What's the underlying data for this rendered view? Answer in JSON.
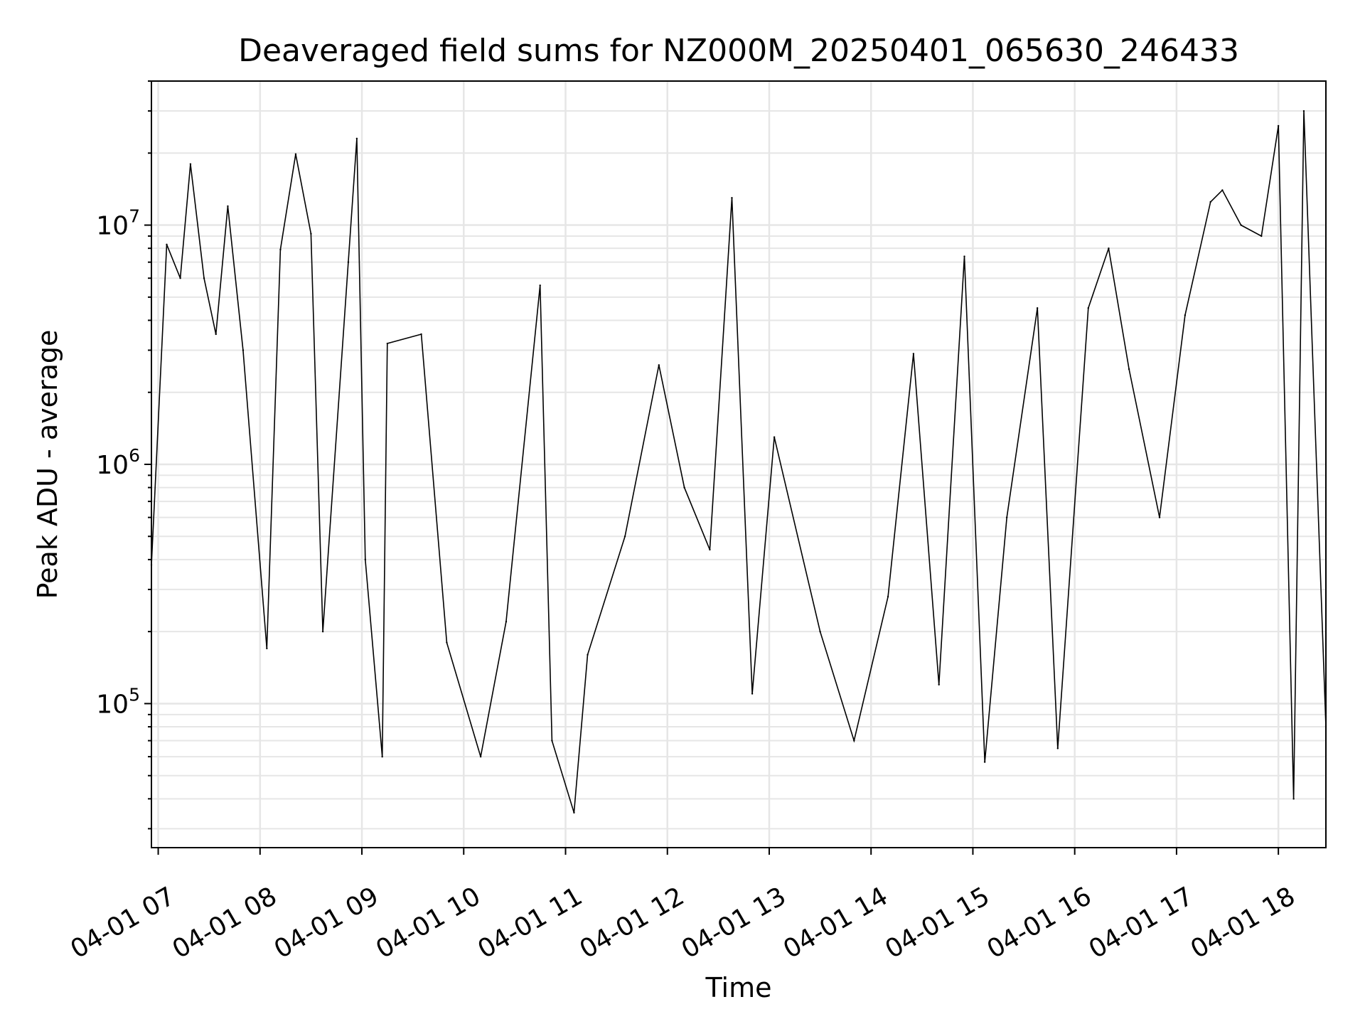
{
  "chart_data": {
    "type": "line",
    "title": "Deaveraged field sums for NZ000M_20250401_065630_246433",
    "xlabel": "Time",
    "ylabel": "Peak ADU - average",
    "yscale": "log",
    "ylim": [
      25000,
      40000000
    ],
    "xlim": [
      "2025-04-01 06:56",
      "2025-04-01 18:28"
    ],
    "grid": true,
    "x_ticks": [
      {
        "value": "2025-04-01 07:00",
        "label": "04-01 07"
      },
      {
        "value": "2025-04-01 08:00",
        "label": "04-01 08"
      },
      {
        "value": "2025-04-01 09:00",
        "label": "04-01 09"
      },
      {
        "value": "2025-04-01 10:00",
        "label": "04-01 10"
      },
      {
        "value": "2025-04-01 11:00",
        "label": "04-01 11"
      },
      {
        "value": "2025-04-01 12:00",
        "label": "04-01 12"
      },
      {
        "value": "2025-04-01 13:00",
        "label": "04-01 13"
      },
      {
        "value": "2025-04-01 14:00",
        "label": "04-01 14"
      },
      {
        "value": "2025-04-01 15:00",
        "label": "04-01 15"
      },
      {
        "value": "2025-04-01 16:00",
        "label": "04-01 16"
      },
      {
        "value": "2025-04-01 17:00",
        "label": "04-01 17"
      },
      {
        "value": "2025-04-01 18:00",
        "label": "04-01 18"
      }
    ],
    "y_ticks": [
      {
        "value": 100000,
        "base": "10",
        "exp": "5"
      },
      {
        "value": 1000000,
        "base": "10",
        "exp": "6"
      },
      {
        "value": 10000000,
        "base": "10",
        "exp": "7"
      }
    ],
    "series": [
      {
        "color": "#000000",
        "x": [
          "2025-04-01 06:56",
          "2025-04-01 07:05",
          "2025-04-01 07:13",
          "2025-04-01 07:19",
          "2025-04-01 07:27",
          "2025-04-01 07:34",
          "2025-04-01 07:41",
          "2025-04-01 07:50",
          "2025-04-01 08:04",
          "2025-04-01 08:12",
          "2025-04-01 08:21",
          "2025-04-01 08:30",
          "2025-04-01 08:37",
          "2025-04-01 08:52",
          "2025-04-01 08:57",
          "2025-04-01 09:02",
          "2025-04-01 09:12",
          "2025-04-01 09:15",
          "2025-04-01 09:35",
          "2025-04-01 09:50",
          "2025-04-01 10:10",
          "2025-04-01 10:25",
          "2025-04-01 10:45",
          "2025-04-01 10:52",
          "2025-04-01 11:05",
          "2025-04-01 11:13",
          "2025-04-01 11:35",
          "2025-04-01 11:55",
          "2025-04-01 12:10",
          "2025-04-01 12:25",
          "2025-04-01 12:38",
          "2025-04-01 12:50",
          "2025-04-01 13:03",
          "2025-04-01 13:30",
          "2025-04-01 13:50",
          "2025-04-01 14:10",
          "2025-04-01 14:25",
          "2025-04-01 14:40",
          "2025-04-01 14:55",
          "2025-04-01 15:07",
          "2025-04-01 15:20",
          "2025-04-01 15:38",
          "2025-04-01 15:50",
          "2025-04-01 16:08",
          "2025-04-01 16:20",
          "2025-04-01 16:32",
          "2025-04-01 16:50",
          "2025-04-01 17:05",
          "2025-04-01 17:20",
          "2025-04-01 17:27",
          "2025-04-01 17:38",
          "2025-04-01 17:50",
          "2025-04-01 18:00",
          "2025-04-01 18:09",
          "2025-04-01 18:15",
          "2025-04-01 18:28"
        ],
        "y": [
          380000,
          8300000,
          6000000,
          18000000,
          6000000,
          3500000,
          12000000,
          3000000,
          170000,
          7900000,
          19800000,
          9200000,
          200000,
          7000000,
          23000000,
          400000,
          60000,
          3200000,
          3500000,
          180000,
          60000,
          220000,
          5600000,
          70000,
          35000,
          160000,
          500000,
          2600000,
          800000,
          440000,
          13000000,
          110000,
          1300000,
          200000,
          70000,
          280000,
          2900000,
          120000,
          7400000,
          57000,
          600000,
          4500000,
          65000,
          4500000,
          8000000,
          2500000,
          600000,
          4200000,
          12500000,
          14000000,
          10000000,
          9000000,
          26000000,
          40000,
          30000000,
          80000
        ]
      }
    ]
  }
}
